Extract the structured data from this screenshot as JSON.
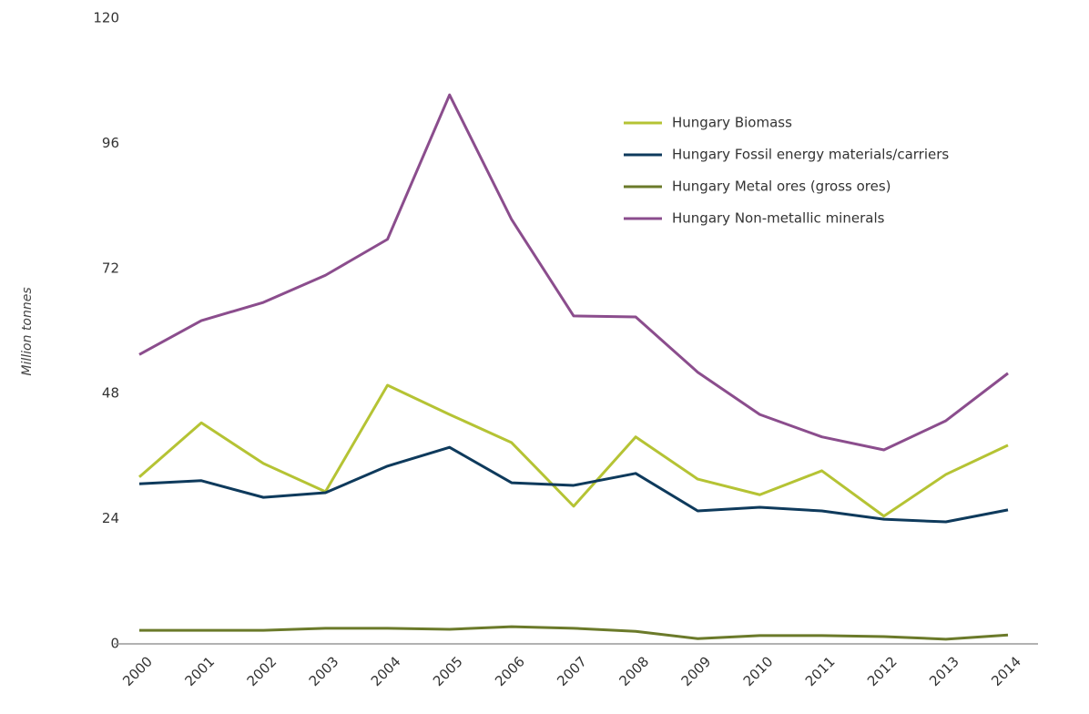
{
  "chart_data": {
    "type": "line",
    "y_label": "Million tonnes",
    "categories": [
      "2000",
      "2001",
      "2002",
      "2003",
      "2004",
      "2005",
      "2006",
      "2007",
      "2008",
      "2009",
      "2010",
      "2011",
      "2012",
      "2013",
      "2014"
    ],
    "series": [
      {
        "name": "Hungary Biomass",
        "color": "#b5c334",
        "values": [
          32.0,
          42.4,
          34.6,
          29.2,
          49.6,
          44.0,
          38.6,
          26.4,
          39.7,
          31.6,
          28.6,
          33.2,
          24.5,
          32.5,
          38.1
        ]
      },
      {
        "name": "Hungary Fossil energy materials/carriers",
        "color": "#0e3a5c",
        "values": [
          30.7,
          31.3,
          28.1,
          29.0,
          34.1,
          37.7,
          30.9,
          30.4,
          32.7,
          25.5,
          26.2,
          25.5,
          23.9,
          23.4,
          25.7
        ]
      },
      {
        "name": "Hungary Metal ores (gross ores)",
        "color": "#6b7a2a",
        "values": [
          2.6,
          2.6,
          2.6,
          3.0,
          3.0,
          2.8,
          3.3,
          3.0,
          2.4,
          1.0,
          1.6,
          1.6,
          1.4,
          0.9,
          1.7
        ]
      },
      {
        "name": "Hungary Non-metallic minerals",
        "color": "#8b4d8d",
        "values": [
          55.5,
          62.0,
          65.5,
          70.7,
          77.6,
          105.3,
          81.4,
          62.9,
          62.7,
          52.1,
          44.0,
          39.7,
          37.2,
          42.8,
          51.9
        ]
      }
    ],
    "ylim": [
      0,
      120
    ],
    "yticks": [
      0,
      24,
      48,
      72,
      96,
      120
    ],
    "grid": false,
    "legend": "upper right"
  }
}
